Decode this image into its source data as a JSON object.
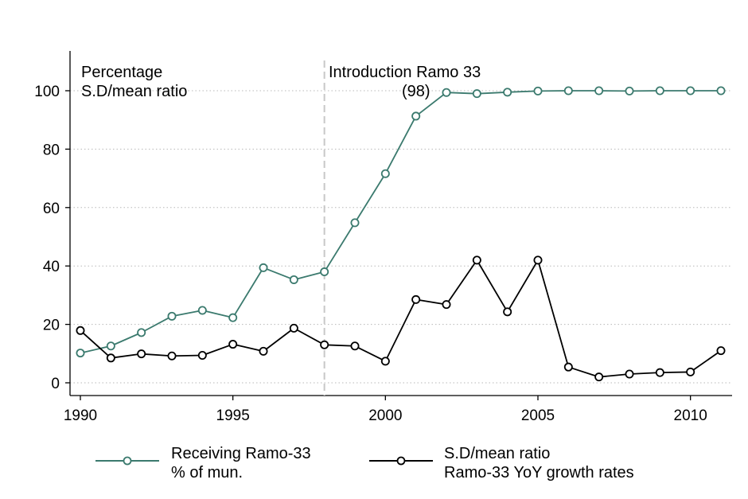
{
  "chart_data": {
    "type": "line",
    "x": [
      1990,
      1991,
      1992,
      1993,
      1994,
      1995,
      1996,
      1997,
      1998,
      1999,
      2000,
      2001,
      2002,
      2003,
      2004,
      2005,
      2006,
      2007,
      2008,
      2009,
      2010,
      2011
    ],
    "series": [
      {
        "name": "Receiving Ramo-33 % of mun.",
        "legend_lines": [
          "Receiving Ramo-33",
          "% of mun."
        ],
        "color": "#3b7a6e",
        "values": [
          10.2,
          12.6,
          17.2,
          22.8,
          24.8,
          22.3,
          39.4,
          35.3,
          38.0,
          54.8,
          71.6,
          91.3,
          99.4,
          99.0,
          99.5,
          99.9,
          100.0,
          100.0,
          99.9,
          100.0,
          100.0,
          100.0
        ]
      },
      {
        "name": "S.D/mean ratio Ramo-33 YoY growth rates",
        "legend_lines": [
          "S.D/mean ratio",
          "Ramo-33 YoY growth rates"
        ],
        "color": "#000000",
        "values": [
          17.9,
          8.5,
          9.9,
          9.2,
          9.4,
          13.2,
          10.8,
          18.7,
          13.0,
          12.6,
          7.4,
          28.5,
          26.8,
          42.0,
          24.3,
          42.0,
          5.4,
          2.0,
          3.0,
          3.5,
          3.7,
          11.0
        ]
      }
    ],
    "xlim": [
      1990,
      2011
    ],
    "ylim": [
      0,
      100
    ],
    "xticks": [
      1990,
      1995,
      2000,
      2005,
      2010
    ],
    "yticks": [
      0,
      20,
      40,
      60,
      80,
      100
    ],
    "grid": "horizontal dotted",
    "legend_placement": "bottom",
    "vline": {
      "x": 1998,
      "style": "dashed",
      "color": "#c8c8c8"
    },
    "annotations": {
      "top_left_line1": "Percentage",
      "top_left_line2": "S.D/mean ratio",
      "vline_line1": "Introduction Ramo 33",
      "vline_line2": "(98)"
    }
  }
}
